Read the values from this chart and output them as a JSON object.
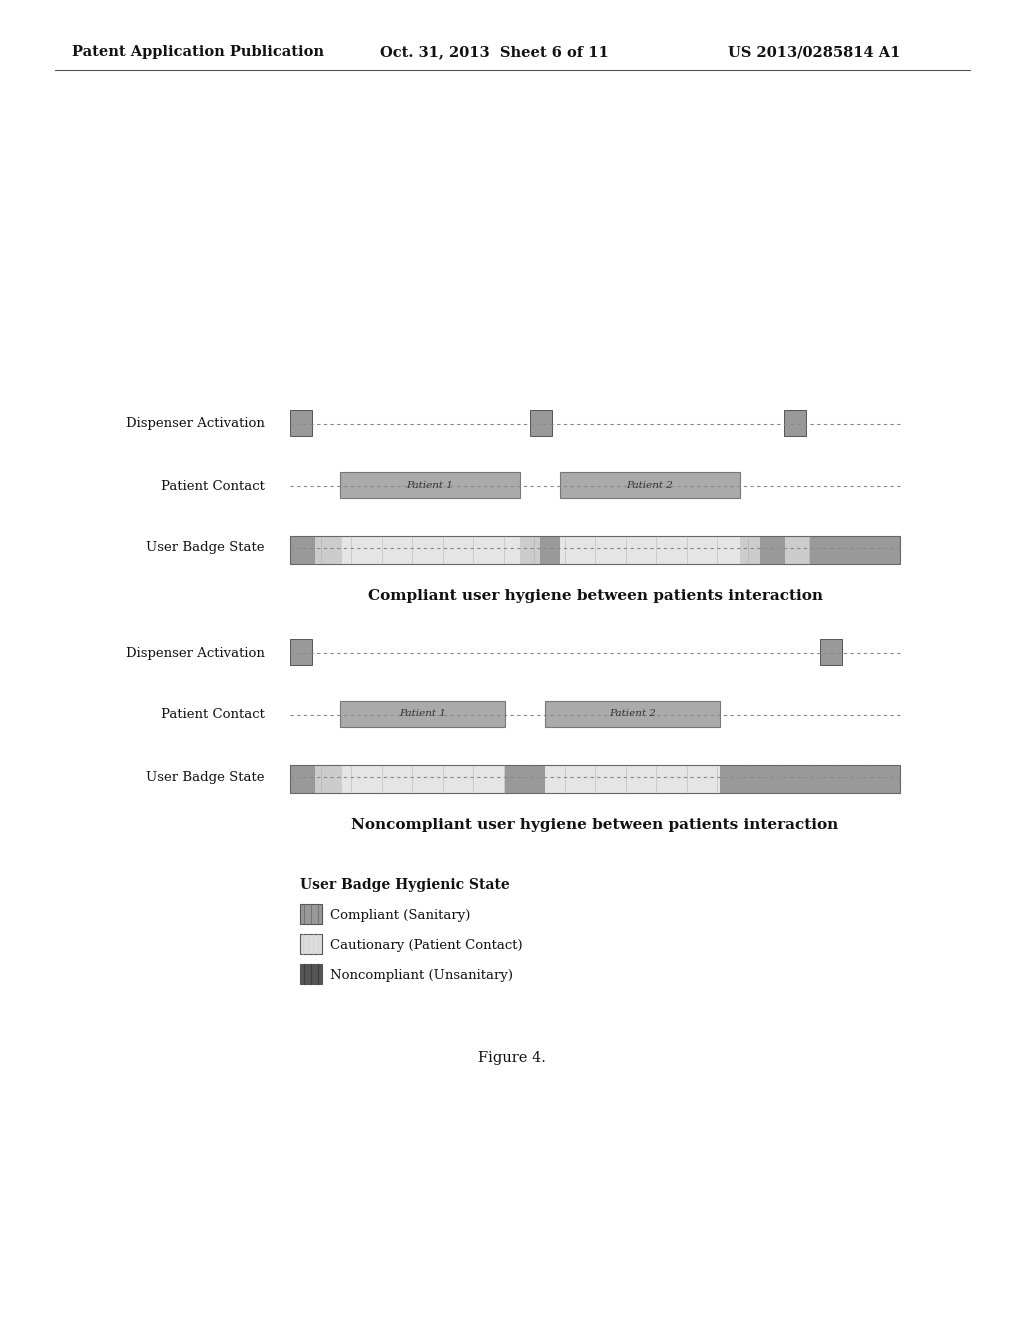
{
  "bg_color": "#ffffff",
  "header_left": "Patent Application Publication",
  "header_mid": "Oct. 31, 2013  Sheet 6 of 11",
  "header_right": "US 2013/0285814 A1",
  "diagram1_title": "Compliant user hygiene between patients interaction",
  "diagram2_title": "Noncompliant user hygiene between patients interaction",
  "legend_title": "User Badge Hygienic State",
  "legend_items": [
    "Compliant (Sanitary)",
    "Cautionary (Patient Contact)",
    "Noncompliant (Unsanitary)"
  ],
  "figure_caption": "Figure 4.",
  "row_labels": [
    "Dispenser Activation",
    "Patient Contact",
    "User Badge State"
  ],
  "color_dark": "#999999",
  "color_mid": "#aaaaaa",
  "color_light": "#cccccc",
  "color_vlight": "#e5e5e5"
}
